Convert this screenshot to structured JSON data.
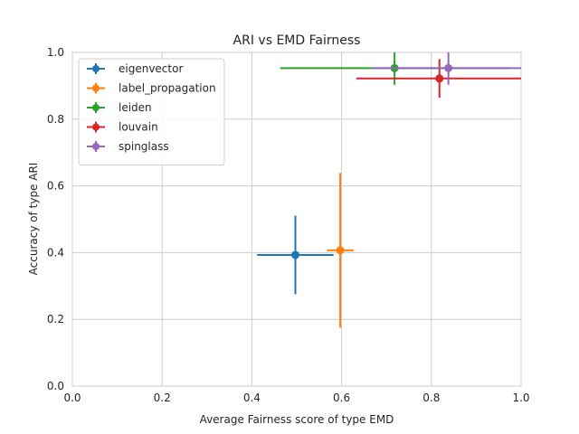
{
  "chart_data": {
    "type": "scatter",
    "title": "ARI vs EMD Fairness",
    "xlabel": "Average Fairness score of type EMD",
    "ylabel": "Accuracy of type ARI",
    "xlim": [
      0,
      1
    ],
    "ylim": [
      0,
      1
    ],
    "xticks": [
      "0.0",
      "0.2",
      "0.4",
      "0.6",
      "0.8",
      "1.0"
    ],
    "yticks": [
      "0.0",
      "0.2",
      "0.4",
      "0.6",
      "0.8",
      "1.0"
    ],
    "grid": true,
    "legend_position": "upper-left",
    "series": [
      {
        "name": "eigenvector",
        "color": "#1f77b4",
        "x": 0.497,
        "y": 0.393,
        "xerr": 0.085,
        "yerr": 0.118
      },
      {
        "name": "label_propagation",
        "color": "#ff7f0e",
        "x": 0.597,
        "y": 0.407,
        "xerr": 0.03,
        "yerr": 0.232
      },
      {
        "name": "leiden",
        "color": "#2ca02c",
        "x": 0.718,
        "y": 0.953,
        "xerr": 0.255,
        "yerr": 0.05
      },
      {
        "name": "louvain",
        "color": "#d62728",
        "x": 0.818,
        "y": 0.922,
        "xerr": 0.185,
        "yerr": 0.058
      },
      {
        "name": "spinglass",
        "color": "#9467bd",
        "x": 0.838,
        "y": 0.953,
        "xerr": 0.17,
        "yerr": 0.05
      }
    ]
  }
}
